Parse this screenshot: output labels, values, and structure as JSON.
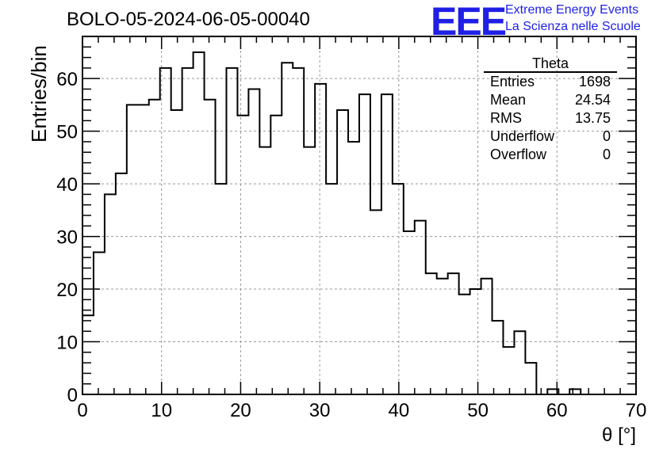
{
  "chart_data": {
    "type": "histogram",
    "title": "BOLO-05-2024-06-05-00040",
    "xlabel": "θ [°]",
    "ylabel": "Entries/bin",
    "xlim": [
      0,
      70
    ],
    "ylim": [
      0,
      68
    ],
    "bin_width": 1.4,
    "x_ticks": [
      0,
      10,
      20,
      30,
      40,
      50,
      60,
      70
    ],
    "y_ticks": [
      0,
      10,
      20,
      30,
      40,
      50,
      60
    ],
    "grid": true,
    "line_color": "#000000",
    "values": [
      15,
      27,
      38,
      42,
      55,
      55,
      56,
      62,
      54,
      62,
      65,
      56,
      40,
      62,
      53,
      58,
      47,
      53,
      63,
      62,
      47,
      59,
      40,
      54,
      48,
      57,
      35,
      57,
      40,
      31,
      33,
      23,
      22,
      23,
      19,
      20,
      22,
      14,
      9,
      12,
      6,
      0,
      1,
      0,
      1,
      0,
      0,
      0,
      0,
      0
    ],
    "stats_box": {
      "title": "Theta",
      "rows": [
        {
          "label": "Entries",
          "value": "1698"
        },
        {
          "label": "Mean",
          "value": "24.54"
        },
        {
          "label": "RMS",
          "value": "13.75"
        },
        {
          "label": "Underflow",
          "value": "0"
        },
        {
          "label": "Overflow",
          "value": "0"
        }
      ]
    }
  },
  "logo": {
    "mark": "EEE",
    "line1": "Extreme Energy Events",
    "line2": "La Scienza nelle Scuole",
    "color": "#1f1fe6"
  }
}
